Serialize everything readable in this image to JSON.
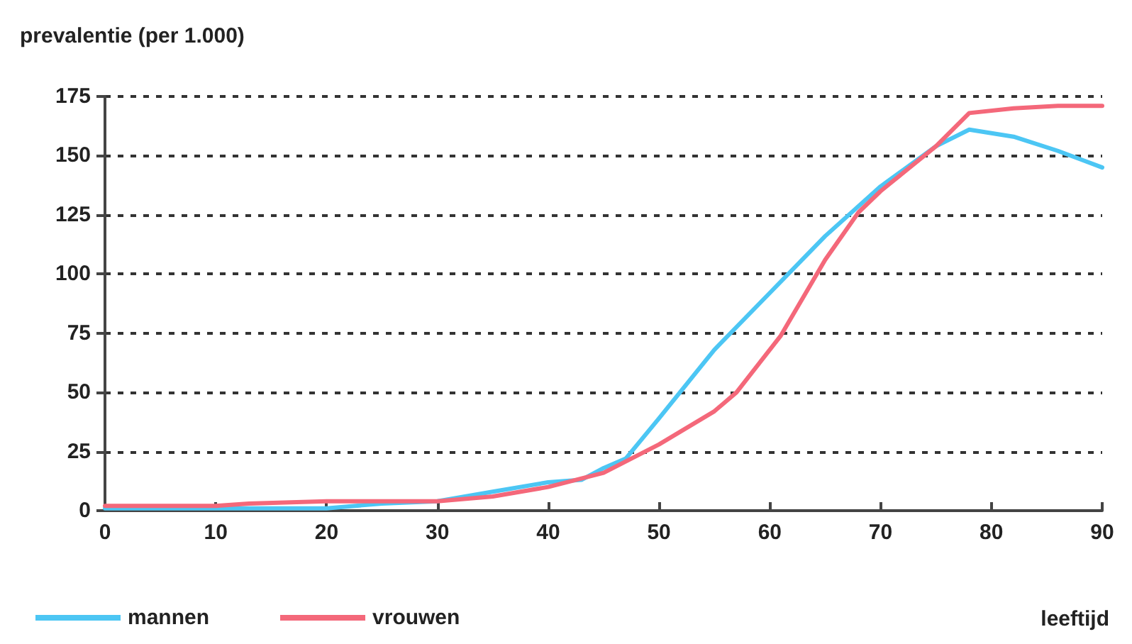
{
  "chart_data": {
    "type": "line",
    "ylabel": "prevalentie (per 1.000)",
    "xlabel": "leeftijd",
    "xlim": [
      0,
      90
    ],
    "xticks": [
      0,
      10,
      20,
      30,
      40,
      50,
      60,
      70,
      80,
      90
    ],
    "ylim": [
      0,
      175
    ],
    "yticks": [
      0,
      25,
      50,
      75,
      100,
      125,
      150,
      175
    ],
    "grid": "y",
    "legend": "bottom left",
    "marker": "none",
    "line_style": "solid",
    "series": [
      {
        "name": "mannen",
        "color": "#4cc6f4",
        "x": [
          0,
          10,
          20,
          25,
          30,
          35,
          40,
          43,
          45,
          47,
          50,
          55,
          60,
          65,
          70,
          75,
          78,
          82,
          86,
          90
        ],
        "values": [
          1,
          1,
          1,
          3,
          4,
          8,
          12,
          13,
          18,
          22,
          39,
          68,
          92,
          116,
          137,
          154,
          161,
          158,
          152,
          145
        ]
      },
      {
        "name": "vrouwen",
        "color": "#f4687a",
        "x": [
          0,
          10,
          13,
          20,
          25,
          30,
          35,
          40,
          45,
          50,
          55,
          57,
          61,
          65,
          68,
          70,
          75,
          78,
          82,
          86,
          90
        ],
        "values": [
          2,
          2,
          3,
          4,
          4,
          4,
          6,
          10,
          16,
          28,
          42,
          50,
          74,
          106,
          126,
          135,
          154,
          168,
          170,
          171,
          171
        ]
      }
    ]
  }
}
